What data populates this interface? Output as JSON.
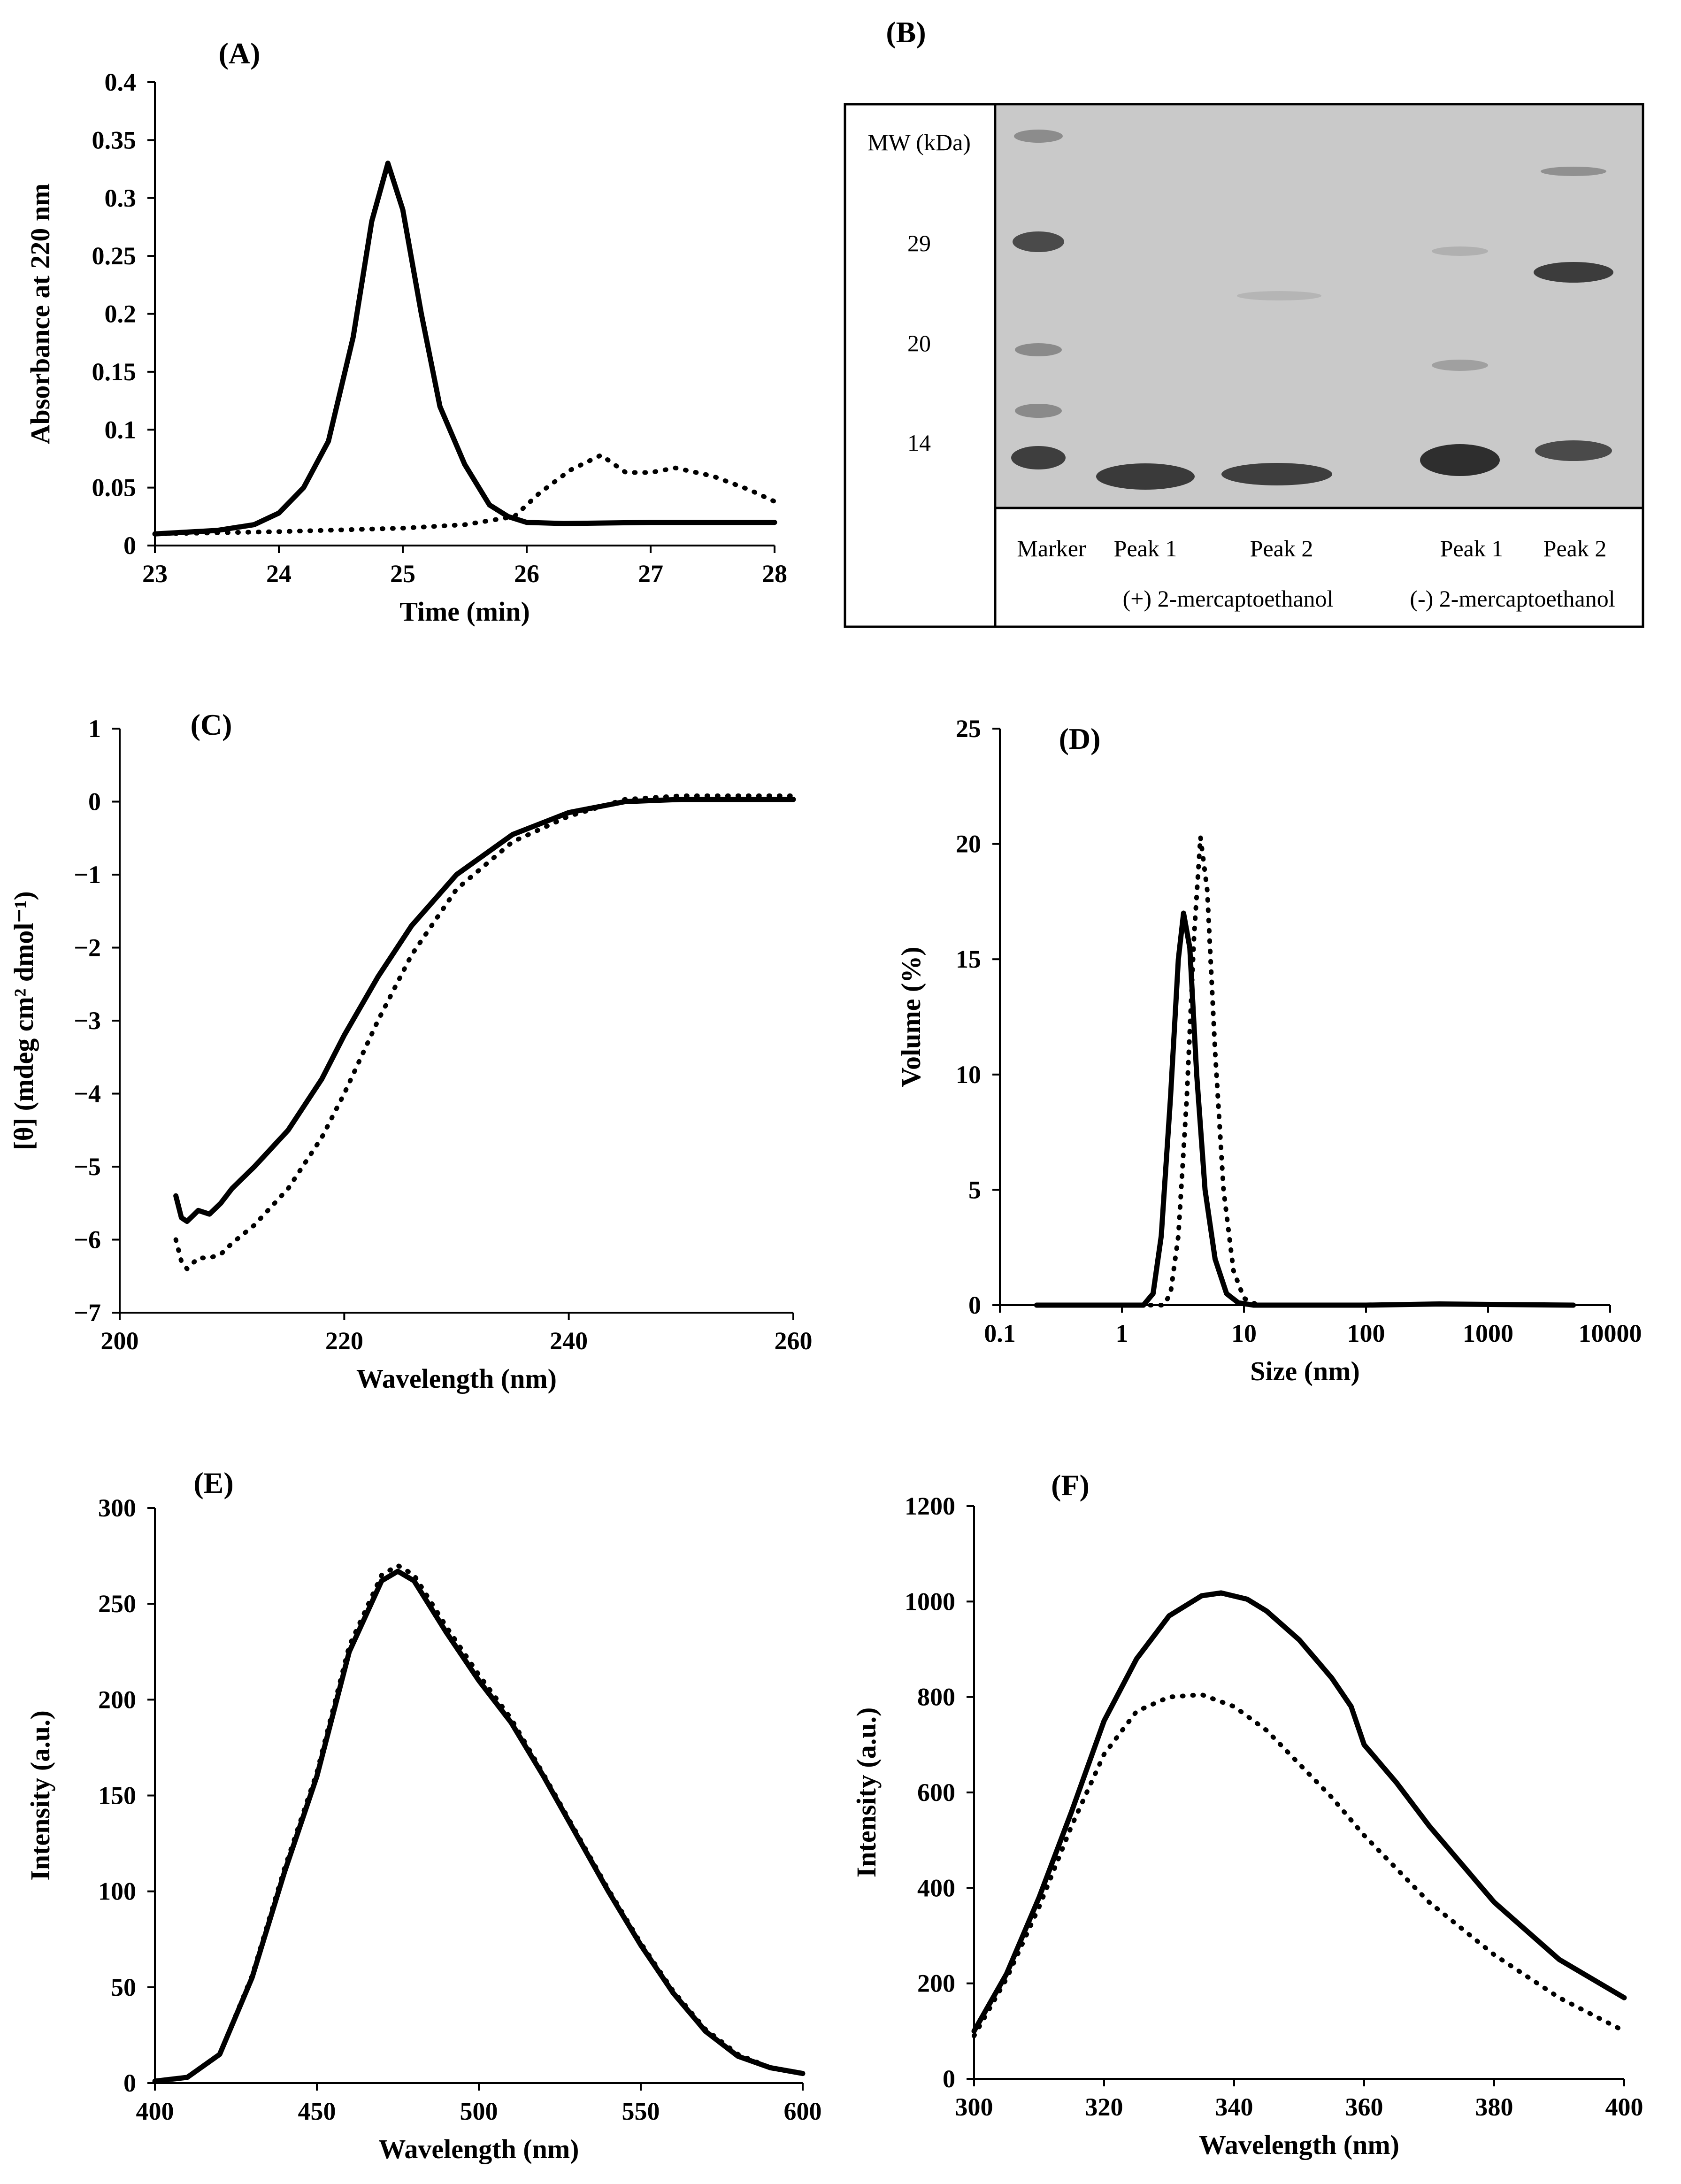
{
  "figure": {
    "panel_b": {
      "label": "(B)",
      "mw_header": "MW (kDa)",
      "mw_markers": [
        "29",
        "20",
        "14"
      ],
      "lanes": [
        "Marker",
        "Peak 1",
        "Peak 2",
        "Peak 1",
        "Peak 2"
      ],
      "conditions": [
        "(+) 2-mercaptoethanol",
        "(-) 2-mercaptoethanol"
      ]
    }
  },
  "chart_data": [
    {
      "id": "A",
      "label": "(A)",
      "type": "line",
      "xlabel": "Time (min)",
      "ylabel": "Absorbance at 220 nm",
      "xlim": [
        23,
        28
      ],
      "ylim": [
        0,
        0.4
      ],
      "xscale": "linear",
      "xticks": [
        "23",
        "24",
        "25",
        "26",
        "27",
        "28"
      ],
      "yticks": [
        "0",
        "0.05",
        "0.1",
        "0.15",
        "0.2",
        "0.25",
        "0.3",
        "0.35",
        "0.4"
      ],
      "series": [
        {
          "name": "solid",
          "style": "solid",
          "x": [
            23,
            23.5,
            23.8,
            24.0,
            24.2,
            24.4,
            24.6,
            24.75,
            24.88,
            25.0,
            25.15,
            25.3,
            25.5,
            25.7,
            25.85,
            26.0,
            26.3,
            27,
            28
          ],
          "y": [
            0.01,
            0.013,
            0.018,
            0.028,
            0.05,
            0.09,
            0.18,
            0.28,
            0.33,
            0.29,
            0.2,
            0.12,
            0.07,
            0.035,
            0.025,
            0.02,
            0.019,
            0.02,
            0.02
          ]
        },
        {
          "name": "dotted",
          "style": "dotted",
          "x": [
            23,
            24,
            25,
            25.5,
            25.9,
            26.1,
            26.35,
            26.6,
            26.8,
            27.0,
            27.2,
            27.5,
            27.8,
            28
          ],
          "y": [
            0.01,
            0.012,
            0.015,
            0.018,
            0.025,
            0.045,
            0.065,
            0.078,
            0.063,
            0.063,
            0.067,
            0.06,
            0.048,
            0.038
          ]
        }
      ]
    },
    {
      "id": "C",
      "label": "(C)",
      "type": "line",
      "xlabel": "Wavelength (nm)",
      "ylabel": "[θ] (mdeg cm² dmol⁻¹)",
      "xlim": [
        200,
        260
      ],
      "ylim": [
        -7,
        1
      ],
      "xscale": "linear",
      "xticks": [
        "200",
        "220",
        "240",
        "260"
      ],
      "yticks": [
        "1",
        "0",
        "-1",
        "-2",
        "-3",
        "-4",
        "-5",
        "-6",
        "-7"
      ],
      "series": [
        {
          "name": "solid",
          "style": "solid",
          "x": [
            205,
            205.5,
            206,
            207,
            208,
            209,
            210,
            212,
            215,
            218,
            220,
            223,
            226,
            230,
            235,
            240,
            245,
            250,
            255,
            260
          ],
          "y": [
            -5.4,
            -5.7,
            -5.75,
            -5.6,
            -5.65,
            -5.5,
            -5.3,
            -5.0,
            -4.5,
            -3.8,
            -3.2,
            -2.4,
            -1.7,
            -1.0,
            -0.45,
            -0.15,
            0.0,
            0.03,
            0.03,
            0.03
          ]
        },
        {
          "name": "dotted",
          "style": "dotted",
          "x": [
            205,
            205.5,
            206,
            207,
            208,
            209,
            210,
            212,
            215,
            218,
            220,
            223,
            226,
            230,
            235,
            240,
            245,
            250,
            255,
            260
          ],
          "y": [
            -6.0,
            -6.3,
            -6.4,
            -6.25,
            -6.25,
            -6.2,
            -6.05,
            -5.8,
            -5.3,
            -4.6,
            -4.0,
            -3.0,
            -2.1,
            -1.2,
            -0.55,
            -0.2,
            0.03,
            0.08,
            0.08,
            0.08
          ]
        }
      ]
    },
    {
      "id": "D",
      "label": "(D)",
      "type": "line",
      "xlabel": "Size (nm)",
      "ylabel": "Volume (%)",
      "xlim": [
        0.1,
        10000
      ],
      "ylim": [
        0,
        25
      ],
      "xscale": "log",
      "xticks": [
        "0.1",
        "1",
        "10",
        "100",
        "1000",
        "10000"
      ],
      "yticks": [
        "0",
        "5",
        "10",
        "15",
        "20",
        "25"
      ],
      "series": [
        {
          "name": "solid",
          "style": "solid",
          "x": [
            0.2,
            1.5,
            1.8,
            2.1,
            2.5,
            2.9,
            3.2,
            3.6,
            4.1,
            4.8,
            5.8,
            7.2,
            9,
            12,
            20,
            100,
            400,
            5000
          ],
          "y": [
            0,
            0,
            0.5,
            3,
            9,
            15,
            17,
            15.5,
            10,
            5,
            2,
            0.5,
            0.1,
            0,
            0,
            0,
            0.05,
            0
          ]
        },
        {
          "name": "dotted",
          "style": "dotted",
          "x": [
            0.2,
            2.2,
            2.5,
            2.9,
            3.4,
            3.9,
            4.4,
            5.0,
            5.8,
            6.8,
            8.2,
            10,
            13,
            25,
            100,
            400,
            5000
          ],
          "y": [
            0,
            0,
            0.5,
            3,
            9,
            16,
            20.3,
            18,
            11,
            5,
            1.5,
            0.3,
            0,
            0,
            0,
            0.05,
            0
          ]
        }
      ]
    },
    {
      "id": "E",
      "label": "(E)",
      "type": "line",
      "xlabel": "Wavelength (nm)",
      "ylabel": "Intensity (a.u.)",
      "xlim": [
        400,
        600
      ],
      "ylim": [
        0,
        300
      ],
      "xscale": "linear",
      "xticks": [
        "400",
        "450",
        "500",
        "550",
        "600"
      ],
      "yticks": [
        "0",
        "50",
        "100",
        "150",
        "200",
        "250",
        "300"
      ],
      "series": [
        {
          "name": "solid",
          "style": "solid",
          "x": [
            400,
            410,
            420,
            430,
            440,
            450,
            460,
            470,
            475,
            480,
            490,
            500,
            510,
            520,
            530,
            540,
            550,
            560,
            570,
            580,
            590,
            600
          ],
          "y": [
            1,
            3,
            15,
            55,
            110,
            160,
            225,
            262,
            267,
            262,
            235,
            210,
            188,
            160,
            130,
            100,
            72,
            47,
            27,
            14,
            8,
            5
          ]
        },
        {
          "name": "dotted",
          "style": "dotted",
          "x": [
            400,
            410,
            420,
            430,
            440,
            450,
            460,
            470,
            475,
            480,
            490,
            500,
            510,
            520,
            530,
            540,
            550,
            560,
            570,
            580,
            590,
            600
          ],
          "y": [
            1,
            3,
            15,
            56,
            112,
            162,
            228,
            265,
            270,
            265,
            238,
            213,
            190,
            161,
            131,
            101,
            73,
            48,
            28,
            15,
            8,
            5
          ]
        }
      ]
    },
    {
      "id": "F",
      "label": "(F)",
      "type": "line",
      "xlabel": "Wavelength (nm)",
      "ylabel": "Intensity (a.u.)",
      "xlim": [
        300,
        400
      ],
      "ylim": [
        0,
        1200
      ],
      "xscale": "linear",
      "xticks": [
        "300",
        "320",
        "340",
        "360",
        "380",
        "400"
      ],
      "yticks": [
        "0",
        "200",
        "400",
        "600",
        "800",
        "1000",
        "1200"
      ],
      "series": [
        {
          "name": "solid",
          "style": "solid",
          "x": [
            300,
            305,
            310,
            315,
            320,
            325,
            330,
            335,
            338,
            342,
            345,
            350,
            355,
            358,
            360,
            365,
            370,
            380,
            390,
            400
          ],
          "y": [
            100,
            220,
            380,
            560,
            750,
            880,
            970,
            1012,
            1018,
            1005,
            980,
            920,
            840,
            780,
            700,
            620,
            530,
            370,
            250,
            170
          ]
        },
        {
          "name": "dotted",
          "style": "dotted",
          "x": [
            300,
            305,
            310,
            315,
            320,
            325,
            330,
            335,
            340,
            345,
            350,
            355,
            360,
            370,
            380,
            390,
            400
          ],
          "y": [
            90,
            210,
            360,
            530,
            680,
            770,
            800,
            805,
            780,
            730,
            660,
            590,
            510,
            370,
            260,
            170,
            100
          ]
        }
      ]
    }
  ]
}
